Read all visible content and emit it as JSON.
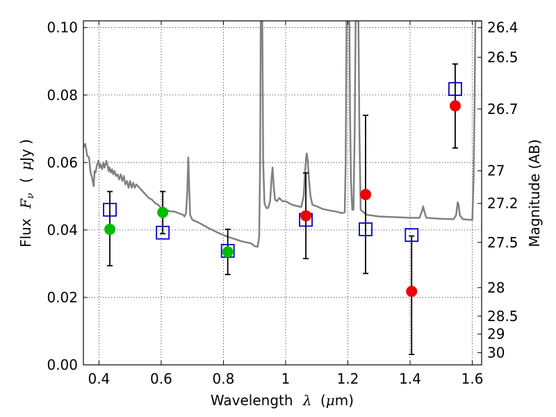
{
  "chart_data": {
    "type": "scatter",
    "title": "",
    "xlabel": {
      "prefix": "Wavelength",
      "symbol": "λ",
      "unit_open": "(",
      "unit_mu": "μ",
      "unit_rest": "m)"
    },
    "ylabel": {
      "prefix": "Flux",
      "symbol": "F",
      "subscript": "ν",
      "unit_open": "(",
      "unit_mu": "μ",
      "unit_rest": "Jy )"
    },
    "y2label": "Magnitude (AB)",
    "xlim": [
      0.35,
      1.63
    ],
    "ylim": [
      0.0,
      0.102
    ],
    "grid": true,
    "x_ticks": [
      {
        "value": 0.4,
        "label": "0.4"
      },
      {
        "value": 0.6,
        "label": "0.6"
      },
      {
        "value": 0.8,
        "label": "0.8"
      },
      {
        "value": 1.0,
        "label": "1"
      },
      {
        "value": 1.2,
        "label": "1.2"
      },
      {
        "value": 1.4,
        "label": "1.4"
      },
      {
        "value": 1.6,
        "label": "1.6"
      }
    ],
    "y_ticks": [
      {
        "value": 0.0,
        "label": "0.00"
      },
      {
        "value": 0.02,
        "label": "0.02"
      },
      {
        "value": 0.04,
        "label": "0.04"
      },
      {
        "value": 0.06,
        "label": "0.06"
      },
      {
        "value": 0.08,
        "label": "0.08"
      },
      {
        "value": 0.1,
        "label": "0.10"
      }
    ],
    "mag_ticks": [
      {
        "mag": 26.4,
        "label": "26.4"
      },
      {
        "mag": 26.5,
        "label": "26.5"
      },
      {
        "mag": 26.7,
        "label": "26.7"
      },
      {
        "mag": 27,
        "label": "27"
      },
      {
        "mag": 27.2,
        "label": "27.2"
      },
      {
        "mag": 27.5,
        "label": "27.5"
      },
      {
        "mag": 28,
        "label": "28"
      },
      {
        "mag": 28.5,
        "label": "28.5"
      },
      {
        "mag": 29,
        "label": "29"
      },
      {
        "mag": 30,
        "label": "30"
      }
    ],
    "series": [
      {
        "kind": "line",
        "color": "#808080",
        "points": [
          [
            0.35,
            0.0645
          ],
          [
            0.356,
            0.0655
          ],
          [
            0.362,
            0.062
          ],
          [
            0.368,
            0.0615
          ],
          [
            0.373,
            0.057
          ],
          [
            0.378,
            0.0555
          ],
          [
            0.383,
            0.053
          ],
          [
            0.386,
            0.0575
          ],
          [
            0.389,
            0.057
          ],
          [
            0.393,
            0.059
          ],
          [
            0.398,
            0.0605
          ],
          [
            0.402,
            0.0585
          ],
          [
            0.405,
            0.0595
          ],
          [
            0.41,
            0.058
          ],
          [
            0.414,
            0.06
          ],
          [
            0.418,
            0.0585
          ],
          [
            0.421,
            0.0595
          ],
          [
            0.424,
            0.0605
          ],
          [
            0.428,
            0.059
          ],
          [
            0.431,
            0.0575
          ],
          [
            0.434,
            0.0585
          ],
          [
            0.438,
            0.057
          ],
          [
            0.442,
            0.058
          ],
          [
            0.446,
            0.0565
          ],
          [
            0.45,
            0.0575
          ],
          [
            0.455,
            0.056
          ],
          [
            0.46,
            0.0565
          ],
          [
            0.465,
            0.055
          ],
          [
            0.47,
            0.0565
          ],
          [
            0.475,
            0.0545
          ],
          [
            0.48,
            0.056
          ],
          [
            0.485,
            0.0535
          ],
          [
            0.49,
            0.0545
          ],
          [
            0.495,
            0.0525
          ],
          [
            0.5,
            0.0545
          ],
          [
            0.505,
            0.0525
          ],
          [
            0.51,
            0.054
          ],
          [
            0.515,
            0.0525
          ],
          [
            0.52,
            0.0535
          ],
          [
            0.53,
            0.0525
          ],
          [
            0.54,
            0.0515
          ],
          [
            0.55,
            0.0505
          ],
          [
            0.56,
            0.0495
          ],
          [
            0.57,
            0.049
          ],
          [
            0.58,
            0.048
          ],
          [
            0.59,
            0.0475
          ],
          [
            0.6,
            0.0465
          ],
          [
            0.61,
            0.0462
          ],
          [
            0.62,
            0.0458
          ],
          [
            0.63,
            0.0455
          ],
          [
            0.64,
            0.0455
          ],
          [
            0.65,
            0.0452
          ],
          [
            0.66,
            0.0448
          ],
          [
            0.67,
            0.0445
          ],
          [
            0.675,
            0.044
          ],
          [
            0.68,
            0.045
          ],
          [
            0.684,
            0.0515
          ],
          [
            0.687,
            0.0615
          ],
          [
            0.69,
            0.053
          ],
          [
            0.693,
            0.0445
          ],
          [
            0.7,
            0.043
          ],
          [
            0.72,
            0.0422
          ],
          [
            0.74,
            0.0412
          ],
          [
            0.76,
            0.0402
          ],
          [
            0.78,
            0.0393
          ],
          [
            0.8,
            0.0385
          ],
          [
            0.82,
            0.0378
          ],
          [
            0.84,
            0.0372
          ],
          [
            0.86,
            0.0366
          ],
          [
            0.88,
            0.0362
          ],
          [
            0.89,
            0.036
          ],
          [
            0.9,
            0.0352
          ],
          [
            0.91,
            0.035
          ],
          [
            0.915,
            0.038
          ],
          [
            0.918,
            0.06
          ],
          [
            0.92,
            0.102
          ],
          [
            0.925,
            0.102
          ],
          [
            0.928,
            0.06
          ],
          [
            0.932,
            0.048
          ],
          [
            0.938,
            0.0465
          ],
          [
            0.944,
            0.0465
          ],
          [
            0.95,
            0.0485
          ],
          [
            0.955,
            0.0555
          ],
          [
            0.958,
            0.0585
          ],
          [
            0.962,
            0.0525
          ],
          [
            0.966,
            0.049
          ],
          [
            0.972,
            0.0485
          ],
          [
            0.98,
            0.0495
          ],
          [
            0.99,
            0.0485
          ],
          [
            1.0,
            0.0485
          ],
          [
            1.01,
            0.048
          ],
          [
            1.02,
            0.0475
          ],
          [
            1.04,
            0.047
          ],
          [
            1.05,
            0.0468
          ],
          [
            1.058,
            0.05
          ],
          [
            1.062,
            0.0565
          ],
          [
            1.066,
            0.0615
          ],
          [
            1.068,
            0.0627
          ],
          [
            1.071,
            0.0605
          ],
          [
            1.075,
            0.055
          ],
          [
            1.08,
            0.05
          ],
          [
            1.086,
            0.0475
          ],
          [
            1.1,
            0.047
          ],
          [
            1.12,
            0.0462
          ],
          [
            1.14,
            0.0458
          ],
          [
            1.16,
            0.0455
          ],
          [
            1.18,
            0.045
          ],
          [
            1.19,
            0.0452
          ],
          [
            1.193,
            0.06
          ],
          [
            1.196,
            0.102
          ],
          [
            1.205,
            0.102
          ],
          [
            1.207,
            0.075
          ],
          [
            1.21,
            0.055
          ],
          [
            1.214,
            0.046
          ],
          [
            1.218,
            0.046
          ],
          [
            1.222,
            0.07
          ],
          [
            1.225,
            0.102
          ],
          [
            1.234,
            0.102
          ],
          [
            1.237,
            0.07
          ],
          [
            1.241,
            0.046
          ],
          [
            1.26,
            0.0445
          ],
          [
            1.3,
            0.044
          ],
          [
            1.35,
            0.0438
          ],
          [
            1.4,
            0.0436
          ],
          [
            1.43,
            0.0436
          ],
          [
            1.438,
            0.0455
          ],
          [
            1.442,
            0.047
          ],
          [
            1.446,
            0.0455
          ],
          [
            1.452,
            0.0436
          ],
          [
            1.5,
            0.0433
          ],
          [
            1.54,
            0.0432
          ],
          [
            1.548,
            0.0444
          ],
          [
            1.553,
            0.0482
          ],
          [
            1.556,
            0.0475
          ],
          [
            1.56,
            0.0443
          ],
          [
            1.57,
            0.0432
          ],
          [
            1.59,
            0.043
          ],
          [
            1.6,
            0.043
          ],
          [
            1.604,
            0.055
          ],
          [
            1.607,
            0.075
          ],
          [
            1.61,
            0.102
          ],
          [
            1.63,
            0.102
          ]
        ]
      },
      {
        "kind": "errorbar",
        "color": "#000000",
        "points": [
          {
            "x": 0.435,
            "y": 0.0402,
            "lo": 0.0294,
            "hi": 0.0514
          },
          {
            "x": 0.605,
            "y": 0.0452,
            "lo": 0.0389,
            "hi": 0.0514
          },
          {
            "x": 0.814,
            "y": 0.0335,
            "lo": 0.0268,
            "hi": 0.0402
          },
          {
            "x": 1.065,
            "y": 0.0442,
            "lo": 0.0315,
            "hi": 0.0569
          },
          {
            "x": 1.257,
            "y": 0.0505,
            "lo": 0.0271,
            "hi": 0.074
          },
          {
            "x": 1.405,
            "y": 0.0218,
            "lo": 0.0031,
            "hi": 0.0382
          },
          {
            "x": 1.545,
            "y": 0.0768,
            "lo": 0.0643,
            "hi": 0.0892
          }
        ]
      },
      {
        "kind": "scatter",
        "marker": "square",
        "color": "#0000cc",
        "points": [
          {
            "x": 0.435,
            "y": 0.046
          },
          {
            "x": 0.605,
            "y": 0.0392
          },
          {
            "x": 0.814,
            "y": 0.0338
          },
          {
            "x": 1.065,
            "y": 0.043
          },
          {
            "x": 1.257,
            "y": 0.0402
          },
          {
            "x": 1.405,
            "y": 0.0385
          },
          {
            "x": 1.545,
            "y": 0.0818
          }
        ]
      },
      {
        "kind": "scatter",
        "marker": "circle",
        "color": "#00bb00",
        "points": [
          {
            "x": 0.435,
            "y": 0.0402
          },
          {
            "x": 0.605,
            "y": 0.0452
          },
          {
            "x": 0.814,
            "y": 0.0335
          }
        ]
      },
      {
        "kind": "scatter",
        "marker": "circle",
        "color": "#ee0000",
        "points": [
          {
            "x": 1.065,
            "y": 0.0442
          },
          {
            "x": 1.257,
            "y": 0.0505
          },
          {
            "x": 1.405,
            "y": 0.0218
          },
          {
            "x": 1.545,
            "y": 0.0768
          }
        ]
      }
    ]
  }
}
